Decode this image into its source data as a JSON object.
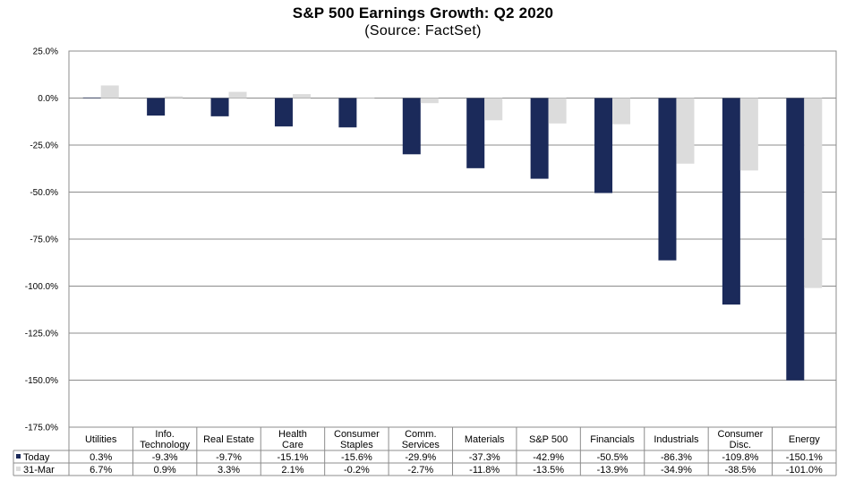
{
  "chart_data": {
    "type": "bar",
    "title": "S&P 500 Earnings Growth: Q2 2020",
    "subtitle": "(Source: FactSet)",
    "xlabel": "",
    "ylabel": "",
    "ylim": [
      -175,
      25
    ],
    "y_ticks": [
      25,
      0,
      -25,
      -50,
      -75,
      -100,
      -125,
      -150,
      -175
    ],
    "y_tick_labels": [
      "25.0%",
      "0.0%",
      "-25.0%",
      "-50.0%",
      "-75.0%",
      "-100.0%",
      "-125.0%",
      "-150.0%",
      "-175.0%"
    ],
    "grid": true,
    "legend": "data-table-left",
    "categories": [
      [
        "Utilities"
      ],
      [
        "Info.",
        "Technology"
      ],
      [
        "Real Estate"
      ],
      [
        "Health",
        "Care"
      ],
      [
        "Consumer",
        "Staples"
      ],
      [
        "Comm.",
        "Services"
      ],
      [
        "Materials"
      ],
      [
        "S&P 500"
      ],
      [
        "Financials"
      ],
      [
        "Industrials"
      ],
      [
        "Consumer",
        "Disc."
      ],
      [
        "Energy"
      ]
    ],
    "series": [
      {
        "name": "Today",
        "color": "#1b2a5a",
        "values": [
          0.3,
          -9.3,
          -9.7,
          -15.1,
          -15.6,
          -29.9,
          -37.3,
          -42.9,
          -50.5,
          -86.3,
          -109.8,
          -150.1
        ],
        "labels": [
          "0.3%",
          "-9.3%",
          "-9.7%",
          "-15.1%",
          "-15.6%",
          "-29.9%",
          "-37.3%",
          "-42.9%",
          "-50.5%",
          "-86.3%",
          "-109.8%",
          "-150.1%"
        ]
      },
      {
        "name": "31-Mar",
        "color": "#dcdcdc",
        "values": [
          6.7,
          0.9,
          3.3,
          2.1,
          -0.2,
          -2.7,
          -11.8,
          -13.5,
          -13.9,
          -34.9,
          -38.5,
          -101.0
        ],
        "labels": [
          "6.7%",
          "0.9%",
          "3.3%",
          "2.1%",
          "-0.2%",
          "-2.7%",
          "-11.8%",
          "-13.5%",
          "-13.9%",
          "-34.9%",
          "-38.5%",
          "-101.0%"
        ]
      }
    ]
  }
}
